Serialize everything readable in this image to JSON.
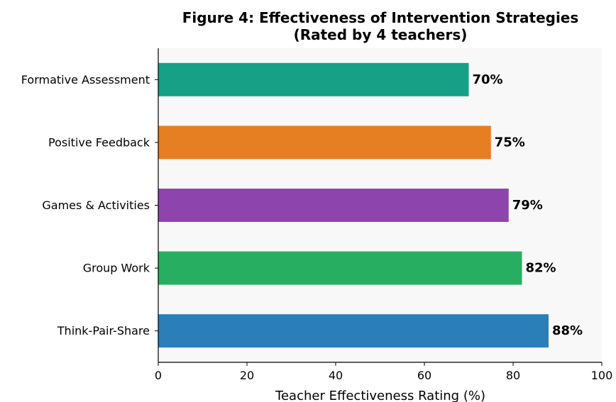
{
  "chart_data": {
    "type": "bar",
    "orientation": "horizontal",
    "title": "Figure 4: Effectiveness of Intervention Strategies",
    "subtitle": "(Rated by 4 teachers)",
    "xlabel": "Teacher Effectiveness Rating (%)",
    "ylabel": "",
    "xlim": [
      0,
      100
    ],
    "xticks": [
      0,
      20,
      40,
      60,
      80,
      100
    ],
    "grid": false,
    "legend": "none",
    "categories": [
      "Think-Pair-Share",
      "Group Work",
      "Games & Activities",
      "Positive Feedback",
      "Formative Assessment"
    ],
    "values": [
      88,
      82,
      79,
      75,
      70
    ],
    "data_labels": [
      "88%",
      "82%",
      "79%",
      "75%",
      "70%"
    ],
    "colors": [
      "#2a7fb8",
      "#27ae60",
      "#8e44ad",
      "#e67e22",
      "#16a085"
    ],
    "plot_background": "#f8f8f8"
  }
}
